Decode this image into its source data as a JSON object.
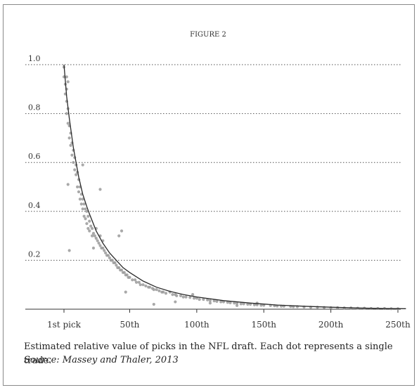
{
  "figure_label": "FIGURE 2",
  "caption": "Estimated relative value of picks in the NFL draft.  Each dot represents a single trade.",
  "source": "Source: Massey and Thaler, 2013",
  "chart_data": {
    "type": "scatter",
    "title": "FIGURE 2",
    "xlabel": "",
    "ylabel": "",
    "xlim": [
      1,
      256
    ],
    "ylim": [
      0,
      1.0
    ],
    "grid": "horizontal dotted",
    "x_ticks": [
      {
        "value": 1,
        "label": "1st pick"
      },
      {
        "value": 50,
        "label": "50th"
      },
      {
        "value": 100,
        "label": "100th"
      },
      {
        "value": 150,
        "label": "150th"
      },
      {
        "value": 200,
        "label": "200th"
      },
      {
        "value": 250,
        "label": "250th"
      }
    ],
    "y_ticks": [
      {
        "value": 1.0,
        "label": "1.0"
      },
      {
        "value": 0.8,
        "label": "0.8"
      },
      {
        "value": 0.6,
        "label": "0.6"
      },
      {
        "value": 0.4,
        "label": "0.4"
      },
      {
        "value": 0.2,
        "label": "0.2"
      }
    ],
    "curve": {
      "x": [
        1,
        3,
        5,
        8,
        10,
        12,
        15,
        18,
        20,
        25,
        30,
        35,
        40,
        45,
        50,
        60,
        70,
        80,
        90,
        100,
        120,
        140,
        160,
        180,
        200,
        220,
        240,
        256
      ],
      "y": [
        1.0,
        0.87,
        0.78,
        0.66,
        0.6,
        0.54,
        0.47,
        0.42,
        0.39,
        0.32,
        0.27,
        0.23,
        0.2,
        0.17,
        0.15,
        0.115,
        0.09,
        0.073,
        0.06,
        0.05,
        0.035,
        0.025,
        0.017,
        0.012,
        0.008,
        0.005,
        0.003,
        0.002
      ]
    },
    "points": {
      "x": [
        1,
        1,
        2,
        2,
        3,
        3,
        3,
        4,
        4,
        5,
        5,
        6,
        6,
        3,
        4,
        7,
        7,
        8,
        8,
        9,
        9,
        10,
        10,
        11,
        11,
        12,
        12,
        13,
        13,
        14,
        14,
        15,
        15,
        16,
        16,
        17,
        17,
        18,
        18,
        19,
        19,
        20,
        20,
        21,
        22,
        22,
        23,
        24,
        25,
        25,
        26,
        27,
        28,
        28,
        29,
        30,
        30,
        31,
        32,
        33,
        34,
        35,
        36,
        37,
        38,
        39,
        40,
        41,
        42,
        43,
        44,
        45,
        46,
        47,
        48,
        49,
        50,
        52,
        54,
        55,
        57,
        58,
        60,
        62,
        64,
        65,
        67,
        68,
        70,
        72,
        74,
        75,
        77,
        80,
        82,
        84,
        85,
        88,
        90,
        92,
        95,
        98,
        100,
        102,
        105,
        108,
        110,
        113,
        115,
        118,
        120,
        123,
        125,
        128,
        130,
        133,
        135,
        138,
        140,
        143,
        145,
        148,
        150,
        155,
        158,
        160,
        165,
        170,
        172,
        175,
        180,
        185,
        190,
        195,
        200,
        205,
        210,
        215,
        220,
        225,
        230,
        235,
        240,
        245,
        250,
        4,
        15,
        28,
        5,
        44,
        42,
        23,
        47,
        68,
        84,
        97,
        110,
        130,
        145,
        163
      ],
      "y": [
        0.99,
        0.95,
        0.92,
        0.88,
        0.9,
        0.85,
        0.8,
        0.82,
        0.76,
        0.75,
        0.7,
        0.72,
        0.67,
        0.95,
        0.93,
        0.68,
        0.63,
        0.65,
        0.6,
        0.62,
        0.57,
        0.59,
        0.55,
        0.56,
        0.5,
        0.53,
        0.48,
        0.5,
        0.45,
        0.47,
        0.43,
        0.45,
        0.41,
        0.43,
        0.38,
        0.41,
        0.37,
        0.4,
        0.35,
        0.38,
        0.33,
        0.36,
        0.32,
        0.34,
        0.33,
        0.3,
        0.31,
        0.3,
        0.29,
        0.33,
        0.28,
        0.27,
        0.26,
        0.3,
        0.25,
        0.25,
        0.28,
        0.24,
        0.23,
        0.22,
        0.22,
        0.21,
        0.2,
        0.2,
        0.19,
        0.19,
        0.18,
        0.17,
        0.17,
        0.16,
        0.16,
        0.15,
        0.15,
        0.14,
        0.14,
        0.13,
        0.13,
        0.12,
        0.12,
        0.11,
        0.11,
        0.1,
        0.1,
        0.095,
        0.09,
        0.09,
        0.085,
        0.08,
        0.08,
        0.075,
        0.07,
        0.07,
        0.065,
        0.07,
        0.06,
        0.06,
        0.055,
        0.055,
        0.05,
        0.05,
        0.048,
        0.045,
        0.045,
        0.04,
        0.04,
        0.038,
        0.035,
        0.034,
        0.032,
        0.03,
        0.03,
        0.028,
        0.026,
        0.025,
        0.024,
        0.022,
        0.022,
        0.02,
        0.02,
        0.018,
        0.018,
        0.016,
        0.016,
        0.015,
        0.014,
        0.013,
        0.012,
        0.011,
        0.01,
        0.01,
        0.009,
        0.008,
        0.008,
        0.007,
        0.006,
        0.006,
        0.005,
        0.005,
        0.004,
        0.004,
        0.003,
        0.003,
        0.003,
        0.002,
        0.002,
        0.51,
        0.59,
        0.49,
        0.24,
        0.32,
        0.3,
        0.25,
        0.07,
        0.02,
        0.03,
        0.06,
        0.025,
        0.015,
        0.025,
        0.012
      ]
    }
  }
}
